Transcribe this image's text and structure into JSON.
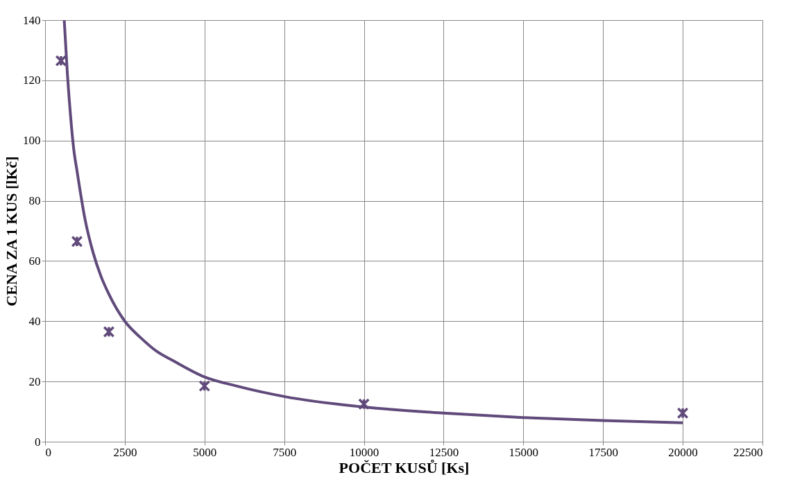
{
  "chart_data": {
    "type": "scatter",
    "xlabel": "POČET KUSŮ [Ks]",
    "ylabel": "CENA ZA 1 KUS [lKč]",
    "x": [
      500,
      1000,
      2000,
      5000,
      10000,
      20000
    ],
    "series": [
      {
        "color": "#604a7b",
        "marker": "cross",
        "values": [
          126.5,
          66.5,
          36.5,
          18.5,
          12.5,
          9.5
        ]
      },
      {
        "type": "line",
        "color": "#604a7b",
        "line_style": "solid",
        "x": [
          600,
          700,
          800,
          900,
          1000,
          1250,
          1500,
          1750,
          2000,
          2500,
          3000,
          3500,
          4000,
          5000,
          6000,
          7500,
          10000,
          12500,
          15000,
          17500,
          20000
        ],
        "values": [
          140,
          122,
          108,
          97,
          90,
          74,
          63,
          55,
          49,
          40,
          34.5,
          30,
          27,
          21.5,
          18.5,
          15,
          11.5,
          9.5,
          8,
          7,
          6.3
        ]
      }
    ],
    "xlim": [
      0,
      22500
    ],
    "xticks": [
      0,
      2500,
      5000,
      7500,
      10000,
      12500,
      15000,
      17500,
      20000,
      22500
    ],
    "ylim": [
      0,
      140
    ],
    "yticks": [
      0,
      20,
      40,
      60,
      80,
      100,
      120,
      140
    ],
    "grid": true
  }
}
